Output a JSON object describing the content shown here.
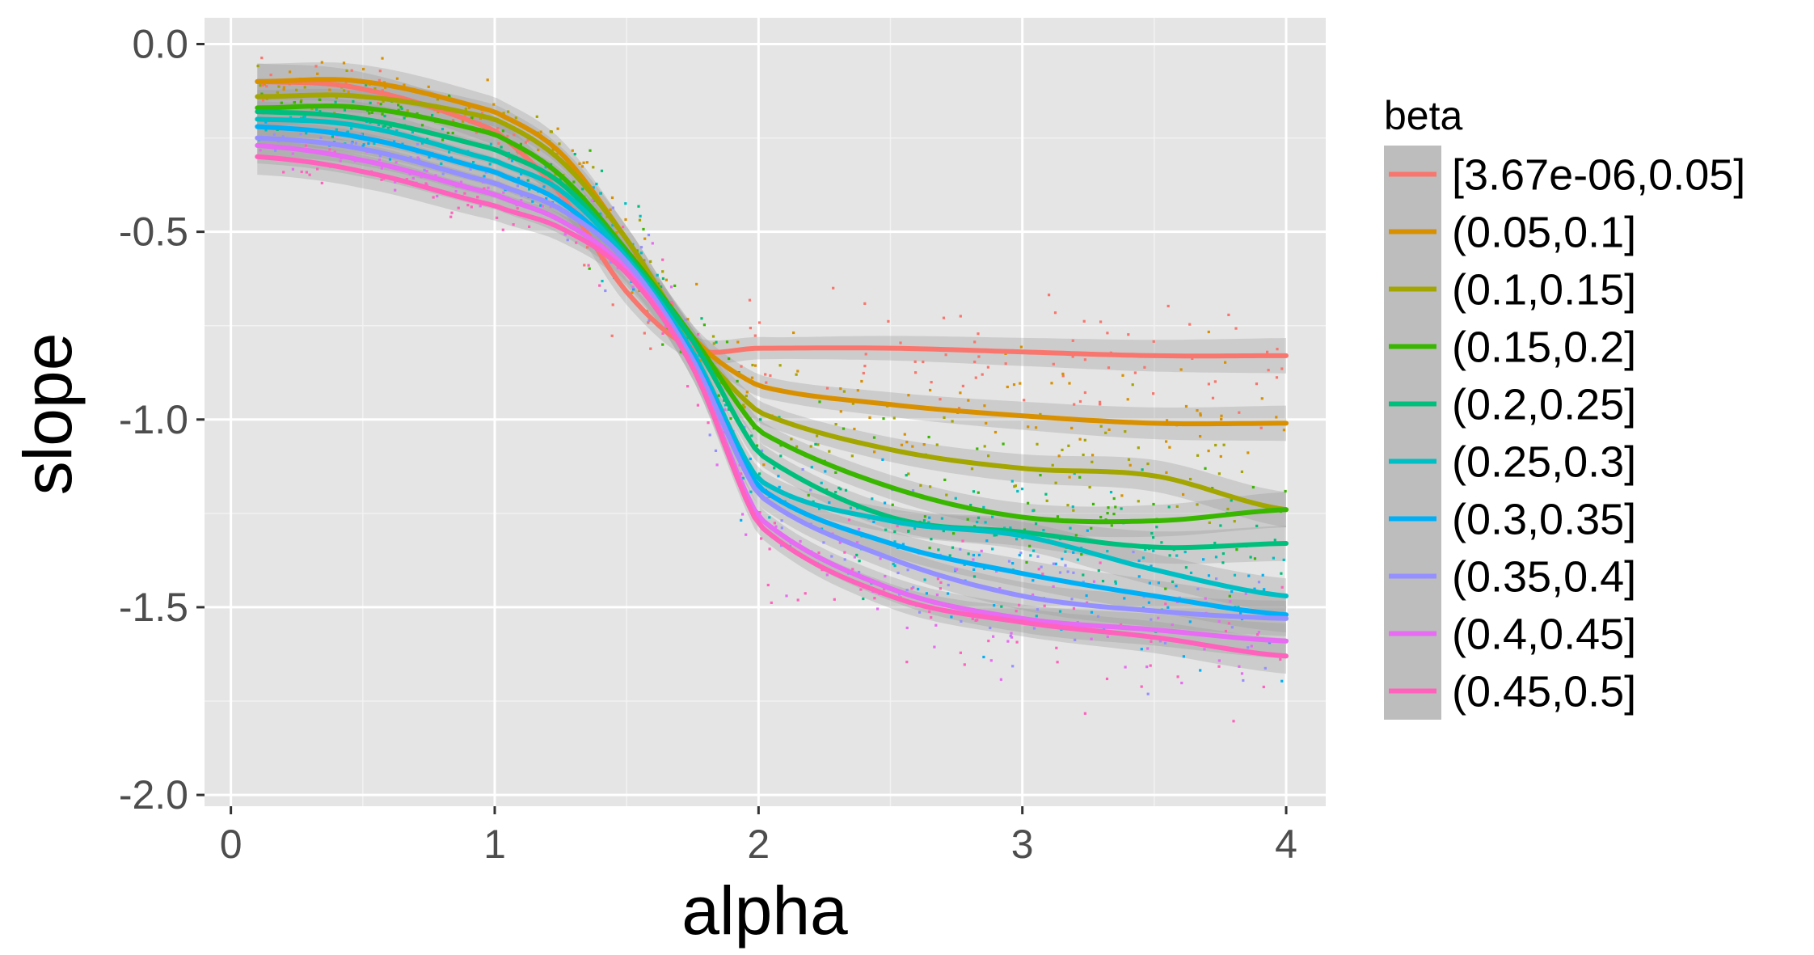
{
  "chart_data": {
    "type": "scatter",
    "title": "",
    "xlabel": "alpha",
    "ylabel": "slope",
    "xlim": [
      -0.1,
      4.15
    ],
    "ylim": [
      -2.03,
      0.07
    ],
    "x_ticks": [
      0,
      1,
      2,
      3,
      4
    ],
    "x_tick_labels": [
      "0",
      "1",
      "2",
      "3",
      "4"
    ],
    "y_ticks": [
      0.0,
      -0.5,
      -1.0,
      -1.5,
      -2.0
    ],
    "y_tick_labels": [
      "0.0",
      "-0.5",
      "-1.0",
      "-1.5",
      "-2.0"
    ],
    "grid": true,
    "background": "#e5e5e5",
    "legend": {
      "title": "beta",
      "placement": "right"
    },
    "smooth_x": [
      0.1,
      0.5,
      1.0,
      1.25,
      1.5,
      1.75,
      2.0,
      2.5,
      3.0,
      3.5,
      4.0
    ],
    "series": [
      {
        "name": "[3.67e-06,0.05]",
        "color": "#F8766D",
        "values": [
          -0.1,
          -0.12,
          -0.23,
          -0.4,
          -0.66,
          -0.81,
          -0.81,
          -0.81,
          -0.82,
          -0.83,
          -0.83
        ]
      },
      {
        "name": "(0.05,0.1]",
        "color": "#D89000",
        "values": [
          -0.1,
          -0.1,
          -0.18,
          -0.29,
          -0.52,
          -0.78,
          -0.91,
          -0.96,
          -0.99,
          -1.01,
          -1.01
        ]
      },
      {
        "name": "(0.1,0.15]",
        "color": "#A3A500",
        "values": [
          -0.14,
          -0.14,
          -0.2,
          -0.31,
          -0.52,
          -0.79,
          -0.98,
          -1.08,
          -1.13,
          -1.15,
          -1.24
        ]
      },
      {
        "name": "(0.15,0.2]",
        "color": "#39B600",
        "values": [
          -0.17,
          -0.17,
          -0.24,
          -0.35,
          -0.55,
          -0.78,
          -1.03,
          -1.18,
          -1.26,
          -1.27,
          -1.24
        ]
      },
      {
        "name": "(0.2,0.25]",
        "color": "#00BF7D",
        "values": [
          -0.18,
          -0.2,
          -0.28,
          -0.37,
          -0.56,
          -0.79,
          -1.09,
          -1.26,
          -1.3,
          -1.34,
          -1.33
        ]
      },
      {
        "name": "(0.25,0.3]",
        "color": "#00BFC4",
        "values": [
          -0.2,
          -0.22,
          -0.31,
          -0.39,
          -0.57,
          -0.82,
          -1.16,
          -1.27,
          -1.31,
          -1.4,
          -1.47
        ]
      },
      {
        "name": "(0.3,0.35]",
        "color": "#00B0F6",
        "values": [
          -0.22,
          -0.25,
          -0.34,
          -0.42,
          -0.58,
          -0.83,
          -1.18,
          -1.33,
          -1.41,
          -1.47,
          -1.52
        ]
      },
      {
        "name": "(0.35,0.4]",
        "color": "#9590FF",
        "values": [
          -0.25,
          -0.28,
          -0.37,
          -0.44,
          -0.58,
          -0.84,
          -1.2,
          -1.37,
          -1.47,
          -1.51,
          -1.53
        ]
      },
      {
        "name": "(0.4,0.45]",
        "color": "#E76BF3",
        "values": [
          -0.27,
          -0.31,
          -0.4,
          -0.47,
          -0.6,
          -0.86,
          -1.26,
          -1.45,
          -1.53,
          -1.56,
          -1.59
        ]
      },
      {
        "name": "(0.45,0.5]",
        "color": "#FF62BC",
        "values": [
          -0.3,
          -0.34,
          -0.43,
          -0.49,
          -0.61,
          -0.86,
          -1.28,
          -1.47,
          -1.54,
          -1.58,
          -1.63
        ]
      }
    ]
  }
}
